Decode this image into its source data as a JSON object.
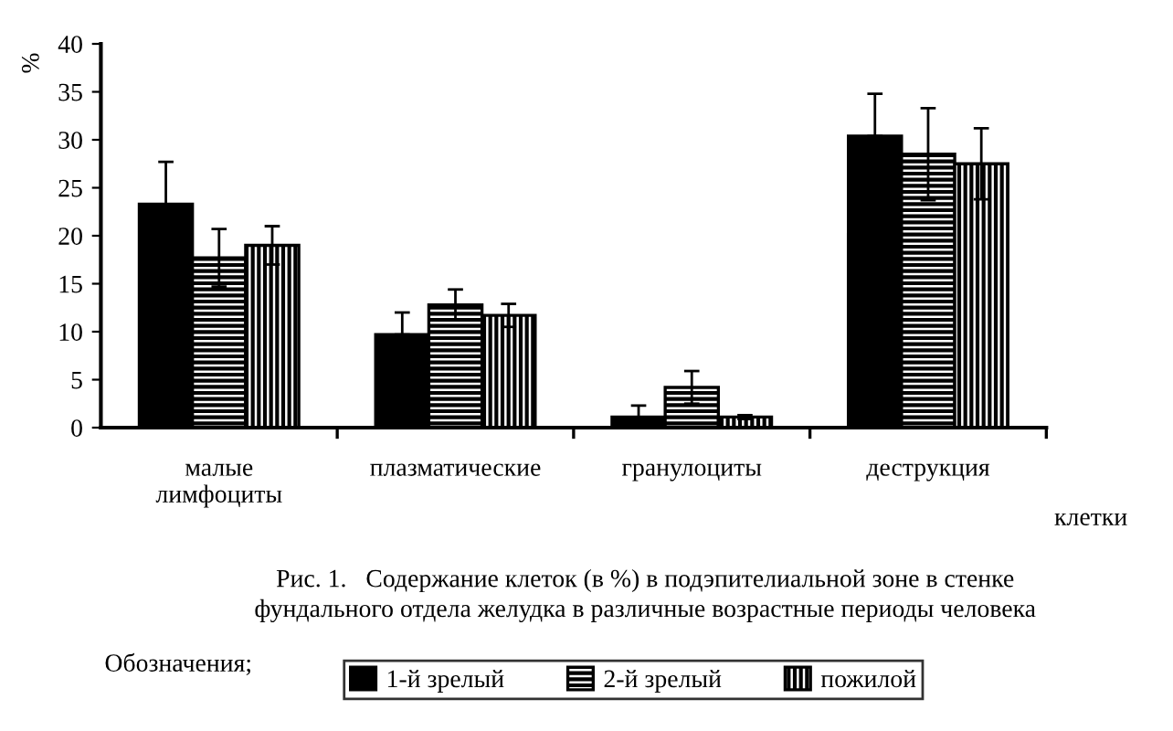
{
  "chart_data": {
    "type": "bar",
    "categories": [
      "малые\nлимфоциты",
      "плазматические",
      "гранулоциты",
      "деструкция"
    ],
    "series": [
      {
        "name": "1-й зрелый",
        "color": "#000000",
        "values": [
          23.3,
          9.7,
          1.1,
          30.4
        ],
        "errors": [
          [
            23.3,
            27.7
          ],
          [
            9.7,
            12.0
          ],
          [
            1.1,
            2.3
          ],
          [
            30.4,
            34.8
          ]
        ]
      },
      {
        "name": "2-й зрелый",
        "color": "#000000",
        "values": [
          17.7,
          12.8,
          4.2,
          28.5
        ],
        "errors": [
          3.0,
          1.6,
          1.7,
          4.8
        ]
      },
      {
        "name": "пожилой",
        "color": "#000000",
        "values": [
          19.0,
          11.7,
          1.1,
          27.5
        ],
        "errors": [
          2.0,
          1.2,
          0.2,
          3.7
        ]
      }
    ],
    "ylim": [
      0,
      40
    ],
    "yticks": [
      0,
      5,
      10,
      15,
      20,
      25,
      30,
      35,
      40
    ],
    "ylabel": "%",
    "xlabel": "клетки",
    "legend": "bottom",
    "legend_title": "Обозначения;",
    "grid": false,
    "annotations": [
      "Рис. 1.   Содержание клеток (в %) в подэпителиальной зоне в стенке\nфундального отдела желудка в различные возрастные периоды человека"
    ]
  }
}
